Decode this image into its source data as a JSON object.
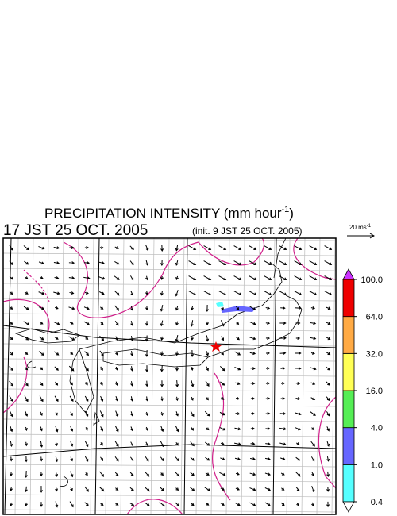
{
  "header": {
    "title": "PRECIPITATION INTENSITY (mm hour",
    "title_exponent": "-1",
    "title_close": ")",
    "valid_time": "17 JST 25 OCT. 2005",
    "init_time": "(init. 9 JST 25 OCT. 2005)"
  },
  "vector_key": {
    "label": "20 ms",
    "exponent": "-1"
  },
  "colorbar": {
    "levels": [
      {
        "value": 0.4,
        "label": "0.4"
      },
      {
        "value": 1,
        "label": "1.0"
      },
      {
        "value": 4,
        "label": "4.0"
      },
      {
        "value": 16,
        "label": "16.0"
      },
      {
        "value": 32,
        "label": "32.0"
      },
      {
        "value": 64,
        "label": "64.0"
      },
      {
        "value": 100,
        "label": "100.0"
      }
    ],
    "colors": [
      "#55ffff",
      "#6666ff",
      "#55ee55",
      "#ffff55",
      "#ffaa44",
      "#ee0000"
    ],
    "over_color": "#cc33ff",
    "under_color": "#ffffff"
  }
}
